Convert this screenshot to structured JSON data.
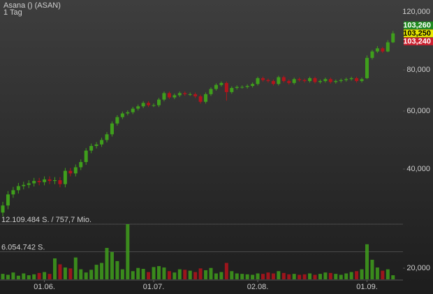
{
  "header": {
    "title": "Asana () (ASAN)",
    "interval": "1 Tag"
  },
  "chart_data": {
    "type": "candlestick",
    "categories": [
      null,
      null,
      null,
      null,
      null,
      null,
      null,
      null,
      "01.06.",
      null,
      null,
      null,
      null,
      null,
      null,
      null,
      null,
      null,
      null,
      null,
      null,
      null,
      null,
      null,
      null,
      null,
      null,
      null,
      null,
      "01.07.",
      null,
      null,
      null,
      null,
      null,
      null,
      null,
      null,
      null,
      null,
      null,
      null,
      null,
      null,
      null,
      null,
      null,
      null,
      null,
      "02.08.",
      null,
      null,
      null,
      null,
      null,
      null,
      null,
      null,
      null,
      null,
      null,
      null,
      null,
      null,
      null,
      null,
      null,
      null,
      null,
      null,
      "01.09.",
      null,
      null,
      null,
      null,
      null
    ],
    "open": [
      29500,
      31000,
      33500,
      34500,
      35500,
      35800,
      36200,
      36800,
      36500,
      37200,
      36800,
      37000,
      36000,
      39500,
      38800,
      40500,
      42000,
      45500,
      47000,
      47500,
      49000,
      51000,
      55000,
      57500,
      59000,
      59500,
      61000,
      62000,
      63500,
      62500,
      62500,
      65000,
      68000,
      66000,
      67000,
      68000,
      67500,
      67500,
      66500,
      64000,
      67500,
      70000,
      72000,
      73000,
      68500,
      70500,
      71000,
      71000,
      71500,
      72500,
      75500,
      74500,
      74000,
      72500,
      76000,
      74000,
      73000,
      75000,
      74500,
      74000,
      75500,
      73500,
      74000,
      75000,
      73500,
      74000,
      74500,
      75000,
      75500,
      74000,
      75500,
      87000,
      91000,
      93000,
      91000,
      97000
    ],
    "high": [
      31800,
      34300,
      35300,
      36300,
      36600,
      37000,
      37600,
      37600,
      38000,
      38000,
      37800,
      37800,
      40300,
      40300,
      41300,
      42800,
      46300,
      47800,
      48300,
      49800,
      51800,
      55800,
      58300,
      59800,
      60300,
      61800,
      62800,
      64300,
      64300,
      63300,
      65800,
      68800,
      68800,
      67800,
      68800,
      68800,
      68300,
      68300,
      67300,
      68300,
      70800,
      72800,
      73800,
      73800,
      71300,
      71800,
      71800,
      72300,
      73300,
      76300,
      76300,
      75300,
      74800,
      76800,
      76800,
      74800,
      75800,
      75800,
      75300,
      76300,
      76300,
      74800,
      75800,
      75800,
      74800,
      75300,
      75800,
      76300,
      76300,
      75800,
      88500,
      92000,
      94500,
      94000,
      98500,
      105000
    ],
    "low": [
      28700,
      30200,
      32700,
      33700,
      34700,
      35000,
      35400,
      35700,
      35700,
      36000,
      36000,
      35200,
      35200,
      38000,
      38000,
      39700,
      41200,
      44700,
      46200,
      46700,
      48200,
      50200,
      54200,
      56700,
      58200,
      58700,
      60200,
      61200,
      61700,
      61700,
      61700,
      64200,
      65200,
      65200,
      66200,
      66700,
      66700,
      65700,
      63200,
      63200,
      66700,
      69200,
      71200,
      64500,
      67700,
      69700,
      70200,
      70200,
      70700,
      71700,
      73700,
      73200,
      71700,
      71700,
      73200,
      72200,
      72200,
      73700,
      73200,
      73200,
      72700,
      72700,
      73200,
      72700,
      72700,
      73200,
      73700,
      74200,
      73200,
      73200,
      75000,
      86000,
      90000,
      90000,
      90500,
      96500
    ],
    "close": [
      31000,
      33500,
      34500,
      35500,
      35800,
      36200,
      36800,
      36500,
      37200,
      36800,
      37000,
      36000,
      39500,
      38800,
      40500,
      42000,
      45500,
      47000,
      47500,
      49000,
      51000,
      55000,
      57500,
      59000,
      59500,
      61000,
      62000,
      63500,
      62500,
      62500,
      65000,
      68000,
      66000,
      67000,
      68000,
      67500,
      67500,
      66500,
      64000,
      67500,
      70000,
      72000,
      73000,
      68500,
      70500,
      71000,
      71000,
      71500,
      72500,
      75500,
      74500,
      74000,
      72500,
      76000,
      74000,
      73000,
      75000,
      74500,
      74000,
      75500,
      73500,
      74000,
      75000,
      73500,
      74000,
      74500,
      75000,
      75500,
      74000,
      75000,
      87000,
      91000,
      93000,
      91000,
      97000,
      103250
    ],
    "volume": [
      1200000,
      1000000,
      1500000,
      800000,
      1300000,
      900000,
      1100000,
      1400000,
      1600000,
      1200000,
      4600000,
      3300000,
      2600000,
      2400000,
      4800000,
      2200000,
      1500000,
      2100000,
      3200000,
      3600000,
      6900000,
      6000000,
      4000000,
      2200000,
      12109484,
      1800000,
      2500000,
      2300000,
      1600000,
      2700000,
      2900000,
      2600000,
      1800000,
      1500000,
      2200000,
      2100000,
      1900000,
      1600000,
      2400000,
      2000000,
      2500000,
      1300000,
      1600000,
      3600000,
      1800000,
      1300000,
      1200000,
      1100000,
      1000000,
      1300000,
      1200000,
      1500000,
      1300000,
      1800000,
      1400000,
      1100000,
      1200000,
      1000000,
      1100000,
      1300000,
      1000000,
      1200000,
      1500000,
      1400000,
      1200000,
      1000000,
      1300000,
      1600000,
      1800000,
      2200000,
      7700000,
      4300000,
      2600000,
      1900000,
      2200000,
      900000
    ],
    "ylim": [
      18500,
      130400
    ],
    "log_scale": true,
    "yticks": [
      {
        "value": 120000,
        "label": "120,000"
      },
      {
        "value": 80000,
        "label": "80,000"
      },
      {
        "value": 60000,
        "label": "60,000"
      },
      {
        "value": 40000,
        "label": "40,000"
      },
      {
        "value": 20000,
        "label": "20,000"
      }
    ],
    "y2lim": [
      0,
      15330000
    ],
    "y2ticks": [
      {
        "value": 12109484,
        "label": "12.109.484 S. / 757,7 Mio."
      },
      {
        "value": 6054742,
        "label": "6.054.742 S."
      }
    ],
    "up_color": "#3f9e1c",
    "down_color": "#b3141c",
    "price_markers": [
      {
        "value": 103260,
        "label": "103,260",
        "color": "#1f8a1f",
        "text_color": "#ffffff"
      },
      {
        "value": 103250,
        "label": "103,250",
        "color": "#e8e800",
        "text_color": "#000000"
      },
      {
        "value": 103240,
        "label": "103,240",
        "color": "#cc1f2e",
        "text_color": "#ffffff"
      }
    ]
  }
}
